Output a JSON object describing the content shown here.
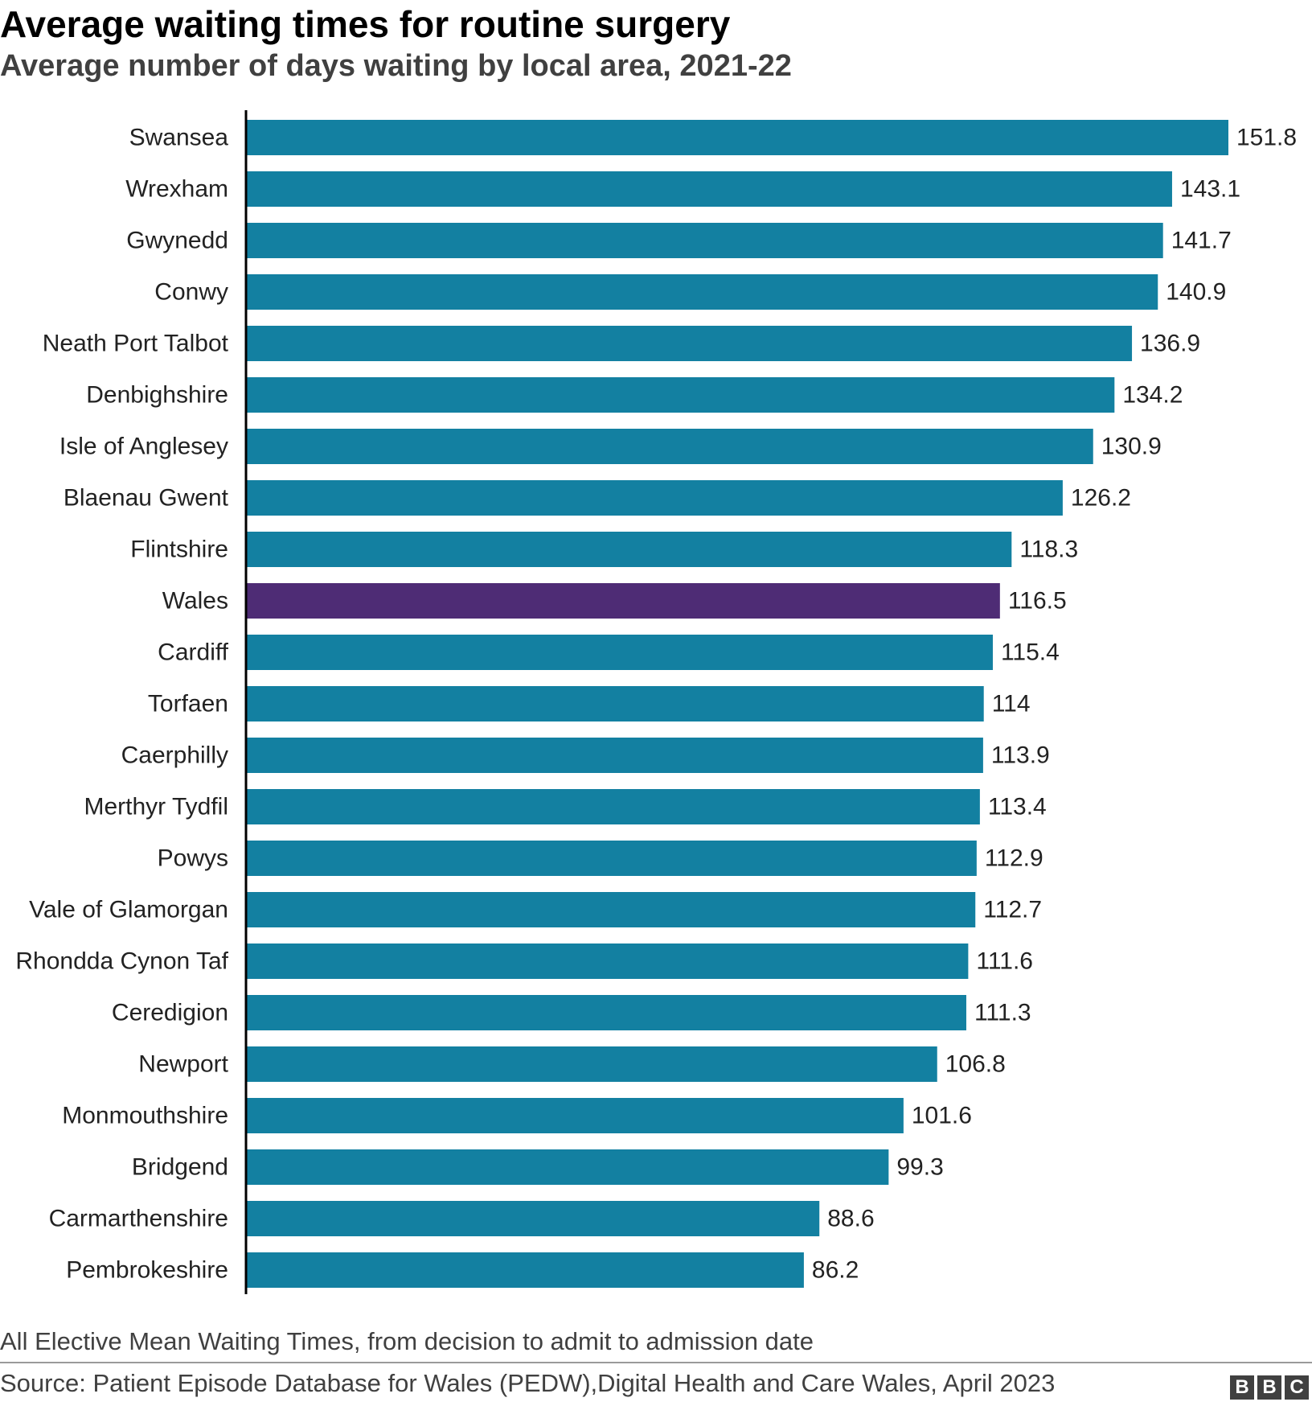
{
  "title": "Average waiting times for routine surgery",
  "subtitle": "Average number of days waiting by local area, 2021-22",
  "note": "All Elective Mean Waiting Times, from decision to admit to admission date",
  "source": "Source: Patient Episode Database for Wales (PEDW),Digital Health and Care Wales, April 2023",
  "logo": [
    "B",
    "B",
    "C"
  ],
  "colors": {
    "bar": "#1380A1",
    "highlight": "#4E2C75",
    "axis": "#000000"
  },
  "chart_data": {
    "type": "bar",
    "orientation": "horizontal",
    "categories": [
      "Swansea",
      "Wrexham",
      "Gwynedd",
      "Conwy",
      "Neath Port Talbot",
      "Denbighshire",
      "Isle of Anglesey",
      "Blaenau Gwent",
      "Flintshire",
      "Wales",
      "Cardiff",
      "Torfaen",
      "Caerphilly",
      "Merthyr Tydfil",
      "Powys",
      "Vale of Glamorgan",
      "Rhondda Cynon Taf",
      "Ceredigion",
      "Newport",
      "Monmouthshire",
      "Bridgend",
      "Carmarthenshire",
      "Pembrokeshire"
    ],
    "values": [
      151.8,
      143.1,
      141.7,
      140.9,
      136.9,
      134.2,
      130.9,
      126.2,
      118.3,
      116.5,
      115.4,
      114,
      113.9,
      113.4,
      112.9,
      112.7,
      111.6,
      111.3,
      106.8,
      101.6,
      99.3,
      88.6,
      86.2
    ],
    "value_labels": [
      "151.8",
      "143.1",
      "141.7",
      "140.9",
      "136.9",
      "134.2",
      "130.9",
      "126.2",
      "118.3",
      "116.5",
      "115.4",
      "114",
      "113.9",
      "113.4",
      "112.9",
      "112.7",
      "111.6",
      "111.3",
      "106.8",
      "101.6",
      "99.3",
      "88.6",
      "86.2"
    ],
    "highlight": "Wales",
    "xlim": [
      0,
      151.8
    ],
    "grid": false,
    "legend": "none",
    "title": "Average waiting times for routine surgery",
    "xlabel": "",
    "ylabel": ""
  }
}
